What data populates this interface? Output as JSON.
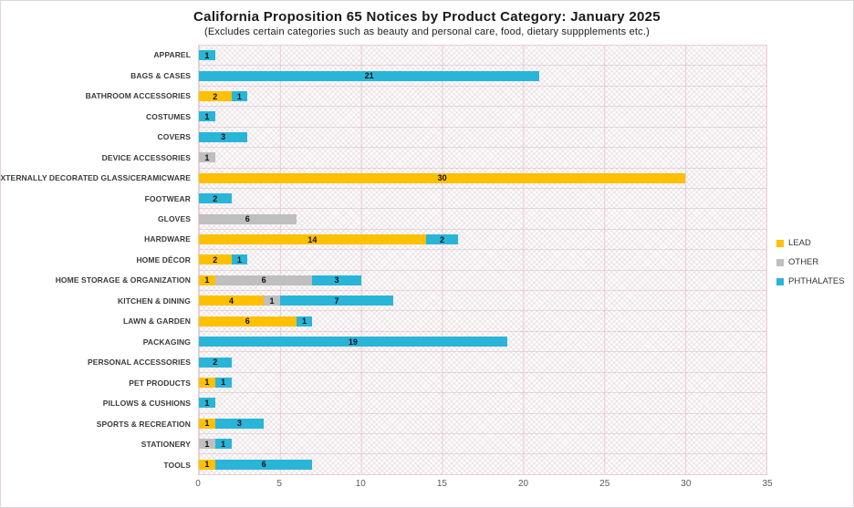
{
  "title": "California Proposition 65 Notices by Product Category: January 2025",
  "subtitle": "(Excludes certain categories such as beauty and personal care, food, dietary suppplements etc.)",
  "chart_data": {
    "type": "bar",
    "orientation": "horizontal",
    "stacked": true,
    "title": "California Proposition 65 Notices by Product Category: January 2025",
    "subtitle": "(Excludes certain categories such as beauty and personal care, food, dietary suppplements etc.)",
    "categories": [
      "APPAREL",
      "BAGS & CASES",
      "BATHROOM ACCESSORIES",
      "COSTUMES",
      "COVERS",
      "DEVICE ACCESSORIES",
      "EXTERNALLY DECORATED GLASS/CERAMICWARE",
      "FOOTWEAR",
      "GLOVES",
      "HARDWARE",
      "HOME DÉCOR",
      "HOME STORAGE & ORGANIZATION",
      "KITCHEN & DINING",
      "LAWN & GARDEN",
      "PACKAGING",
      "PERSONAL ACCESSORIES",
      "PET PRODUCTS",
      "PILLOWS & CUSHIONS",
      "SPORTS & RECREATION",
      "STATIONERY",
      "TOOLS"
    ],
    "series": [
      {
        "name": "LEAD",
        "color": "#FFC000",
        "values": [
          0,
          0,
          2,
          0,
          0,
          0,
          30,
          0,
          0,
          14,
          2,
          1,
          4,
          6,
          0,
          0,
          1,
          0,
          1,
          0,
          1
        ]
      },
      {
        "name": "OTHER",
        "color": "#BFBFBF",
        "values": [
          0,
          0,
          0,
          0,
          0,
          1,
          0,
          0,
          6,
          0,
          0,
          6,
          1,
          0,
          0,
          0,
          0,
          0,
          0,
          1,
          0
        ]
      },
      {
        "name": "PHTHALATES",
        "color": "#29B5D8",
        "values": [
          1,
          21,
          1,
          1,
          3,
          0,
          0,
          2,
          0,
          2,
          1,
          3,
          7,
          1,
          19,
          2,
          1,
          1,
          3,
          1,
          6
        ]
      }
    ],
    "xlim": [
      0,
      35
    ],
    "xticks": [
      0,
      5,
      10,
      15,
      20,
      25,
      30,
      35
    ],
    "grid": true,
    "legend_position": "right"
  }
}
